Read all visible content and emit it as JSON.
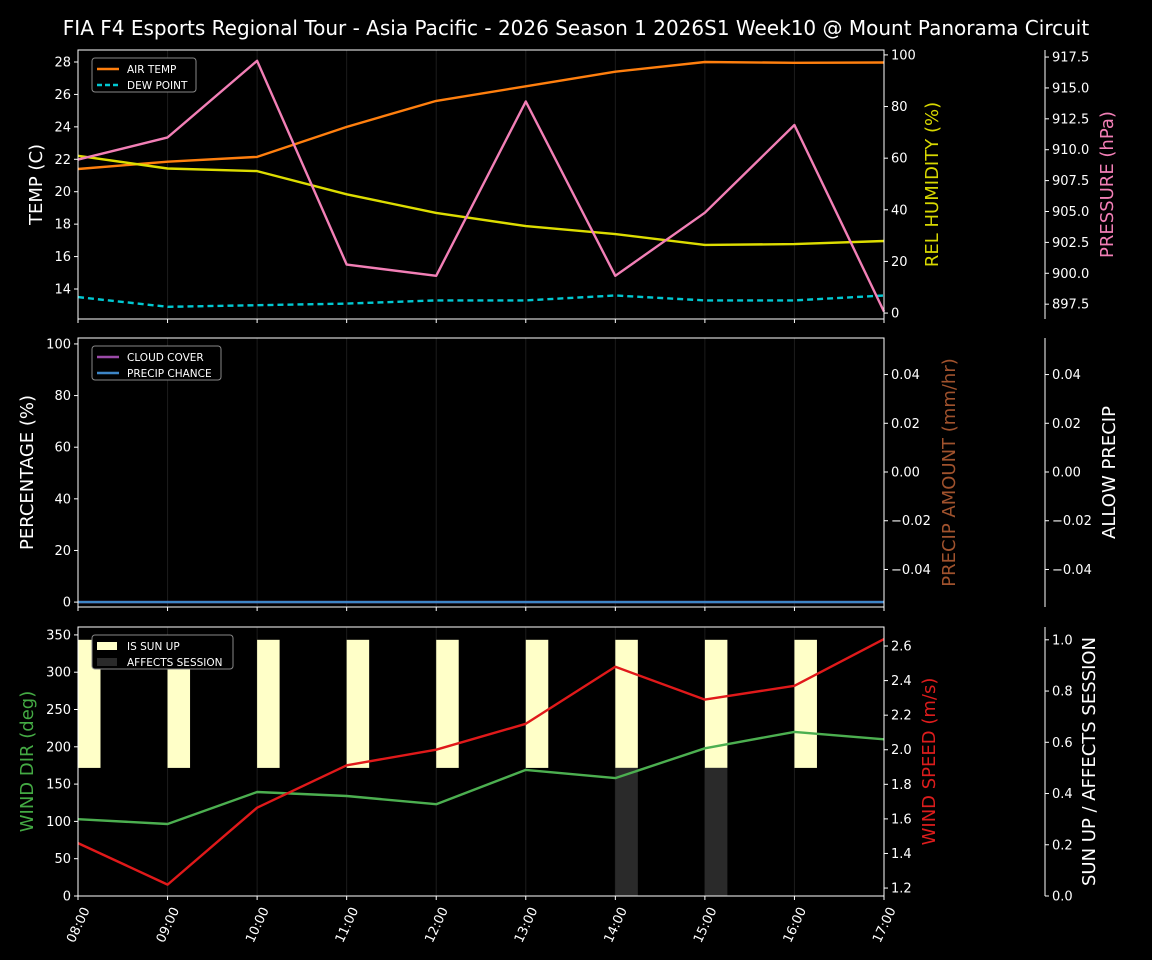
{
  "title": "FIA F4 Esports Regional Tour - Asia Pacific - 2026 Season 1 2026S1 Week10 @ Mount Panorama Circuit",
  "chart_data": {
    "type": "line",
    "x": [
      "08:00",
      "09:00",
      "10:00",
      "11:00",
      "12:00",
      "13:00",
      "14:00",
      "15:00",
      "16:00",
      "17:00"
    ],
    "panels": [
      {
        "axes": [
          {
            "side": "left",
            "label": "TEMP (C)",
            "label_color": "#ffffff",
            "ylim": [
              12.15,
              28.74
            ],
            "ticks": [
              14,
              16,
              18,
              20,
              22,
              24,
              26,
              28
            ],
            "tick_labels": [
              "14",
              "16",
              "18",
              "20",
              "22",
              "24",
              "26",
              "28"
            ]
          },
          {
            "side": "right",
            "label": "REL HUMIDITY (%)",
            "label_color": "#d8d800",
            "ylim": [
              -2.3,
              101.9
            ],
            "ticks": [
              0,
              20,
              40,
              60,
              80,
              100
            ],
            "tick_labels": [
              "0",
              "20",
              "40",
              "60",
              "80",
              "100"
            ]
          },
          {
            "side": "far-right",
            "label": "PRESSURE (hPa)",
            "label_color": "#f27fb6",
            "ylim": [
              896.3,
              918.07
            ],
            "ticks": [
              897.5,
              900,
              902.5,
              905,
              907.5,
              910,
              912.5,
              915,
              917.5
            ],
            "tick_labels": [
              "897.5",
              "900.0",
              "902.5",
              "905.0",
              "907.5",
              "910.0",
              "912.5",
              "915.0",
              "917.5"
            ]
          }
        ],
        "legend": {
          "placement": "upper-left",
          "entries": [
            {
              "label": "AIR TEMP",
              "color": "#ff7f0e",
              "style": "solid"
            },
            {
              "label": "DEW POINT",
              "color": "#00c8d2",
              "style": "dashed"
            }
          ]
        },
        "series": [
          {
            "name": "AIR TEMP",
            "axis": 0,
            "color": "#ff7f0e",
            "style": "solid",
            "values": [
              21.4,
              21.85,
              22.15,
              24.0,
              25.6,
              26.5,
              27.4,
              28.0,
              27.95,
              27.97
            ]
          },
          {
            "name": "DEW POINT",
            "axis": 0,
            "color": "#00c8d2",
            "style": "dashed",
            "values": [
              13.5,
              12.9,
              13.0,
              13.1,
              13.3,
              13.3,
              13.6,
              13.3,
              13.3,
              13.6
            ]
          },
          {
            "axis": 1,
            "color": "#dddd00",
            "style": "solid",
            "values": [
              60.9,
              56.0,
              55.0,
              46.0,
              38.8,
              33.7,
              30.6,
              26.4,
              26.7,
              27.9
            ]
          },
          {
            "axis": 2,
            "color": "#f27fb6",
            "style": "solid",
            "values": [
              909.2,
              911.0,
              917.2,
              900.7,
              899.8,
              913.9,
              899.8,
              904.9,
              912.0,
              896.9
            ]
          }
        ]
      },
      {
        "axes": [
          {
            "side": "left",
            "label": "PERCENTAGE (%)",
            "label_color": "#ffffff",
            "ylim": [
              -1.9,
              102.3
            ],
            "ticks": [
              0,
              20,
              40,
              60,
              80,
              100
            ],
            "tick_labels": [
              "0",
              "20",
              "40",
              "60",
              "80",
              "100"
            ]
          },
          {
            "side": "right",
            "label": "PRECIP AMOUNT (mm/hr)",
            "label_color": "#a0522d",
            "ylim": [
              -0.0554,
              0.055
            ],
            "ticks": [
              -0.04,
              -0.02,
              0,
              0.02,
              0.04
            ],
            "tick_labels": [
              "−0.04",
              "−0.02",
              "0.00",
              "0.02",
              "0.04"
            ]
          },
          {
            "side": "far-right",
            "label": "ALLOW PRECIP",
            "label_color": "#ffffff",
            "ylim": [
              -0.0554,
              0.055
            ],
            "ticks": [
              -0.04,
              -0.02,
              0,
              0.02,
              0.04
            ],
            "tick_labels": [
              "−0.04",
              "−0.02",
              "0.00",
              "0.02",
              "0.04"
            ]
          }
        ],
        "legend": {
          "placement": "upper-left",
          "entries": [
            {
              "label": "CLOUD COVER",
              "color": "#9b4aa8",
              "style": "solid"
            },
            {
              "label": "PRECIP CHANCE",
              "color": "#3d85c6",
              "style": "solid"
            }
          ]
        },
        "series": [
          {
            "name": "CLOUD COVER",
            "axis": 0,
            "color": "#9b4aa8",
            "style": "solid",
            "values": [
              0,
              0,
              0,
              0,
              0,
              0,
              0,
              0,
              0,
              0
            ]
          },
          {
            "name": "PRECIP CHANCE",
            "axis": 0,
            "color": "#3d85c6",
            "style": "solid",
            "values": [
              0,
              0,
              0,
              0,
              0,
              0,
              0,
              0,
              0,
              0
            ]
          }
        ]
      },
      {
        "axes": [
          {
            "side": "left",
            "label": "WIND DIR (deg)",
            "label_color": "#44aa44",
            "ylim": [
              0,
              360.6
            ],
            "ticks": [
              0,
              50,
              100,
              150,
              200,
              250,
              300,
              350
            ],
            "tick_labels": [
              "0",
              "50",
              "100",
              "150",
              "200",
              "250",
              "300",
              "350"
            ]
          },
          {
            "side": "right",
            "label": "WIND SPEED (m/s)",
            "label_color": "#dd1c1c",
            "ylim": [
              1.154,
              2.71
            ],
            "ticks": [
              1.2,
              1.4,
              1.6,
              1.8,
              2.0,
              2.2,
              2.4,
              2.6
            ],
            "tick_labels": [
              "1.2",
              "1.4",
              "1.6",
              "1.8",
              "2.0",
              "2.2",
              "2.4",
              "2.6"
            ]
          },
          {
            "side": "far-right",
            "label": "SUN UP / AFFECTS SESSION",
            "label_color": "#ffffff",
            "ylim": [
              0,
              1.05
            ],
            "ticks": [
              0,
              0.2,
              0.4,
              0.6,
              0.8,
              1.0
            ],
            "tick_labels": [
              "0.0",
              "0.2",
              "0.4",
              "0.6",
              "0.8",
              "1.0"
            ]
          }
        ],
        "legend": {
          "placement": "upper-left",
          "entries": [
            {
              "label": "IS SUN UP",
              "color": "#ffffc8",
              "style": "box"
            },
            {
              "label": "AFFECTS SESSION",
              "color": "#2a2a2a",
              "style": "box"
            }
          ]
        },
        "bars": [
          {
            "name": "IS SUN UP",
            "axis": 2,
            "color": "#ffffc8",
            "bottom": 0.5,
            "height": 0.5,
            "values": [
              1,
              1,
              1,
              1,
              1,
              1,
              1,
              1,
              1,
              0
            ]
          },
          {
            "name": "AFFECTS SESSION",
            "axis": 2,
            "color": "#2a2a2a",
            "bottom": 0,
            "height": 0.5,
            "values": [
              0,
              0,
              0,
              0,
              0,
              0,
              1,
              1,
              0,
              0
            ]
          }
        ],
        "series": [
          {
            "axis": 0,
            "color": "#4caf50",
            "style": "solid",
            "values": [
              103,
              96.5,
              139.4,
              134,
              123,
              169,
              158,
              198,
              220,
              210
            ]
          },
          {
            "axis": 1,
            "color": "#e0191a",
            "style": "solid",
            "values": [
              1.46,
              1.22,
              1.665,
              1.91,
              2.0,
              2.15,
              2.48,
              2.29,
              2.37,
              2.64
            ]
          }
        ]
      }
    ]
  }
}
